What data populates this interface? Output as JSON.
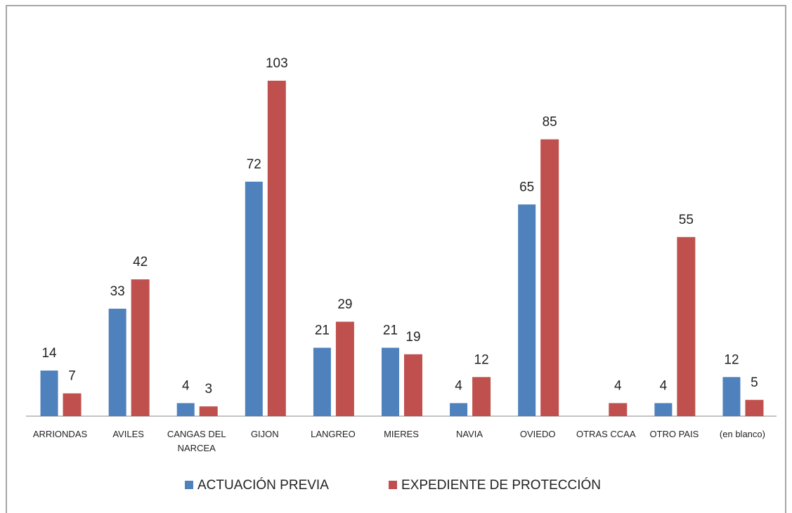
{
  "chart_data": {
    "type": "bar",
    "categories": [
      "ARRIONDAS",
      "AVILES",
      "CANGAS DEL NARCEA",
      "GIJON",
      "LANGREO",
      "MIERES",
      "NAVIA",
      "OVIEDO",
      "OTRAS CCAA",
      "OTRO PAIS",
      "(en blanco)"
    ],
    "series": [
      {
        "name": "ACTUACIÓN PREVIA",
        "color": "#4f81bd",
        "values": [
          14,
          33,
          4,
          72,
          21,
          21,
          4,
          65,
          null,
          4,
          12
        ]
      },
      {
        "name": "EXPEDIENTE DE PROTECCIÓN",
        "color": "#c0504d",
        "values": [
          7,
          42,
          3,
          103,
          29,
          19,
          12,
          85,
          4,
          55,
          5
        ]
      }
    ],
    "legend": "bottom"
  }
}
